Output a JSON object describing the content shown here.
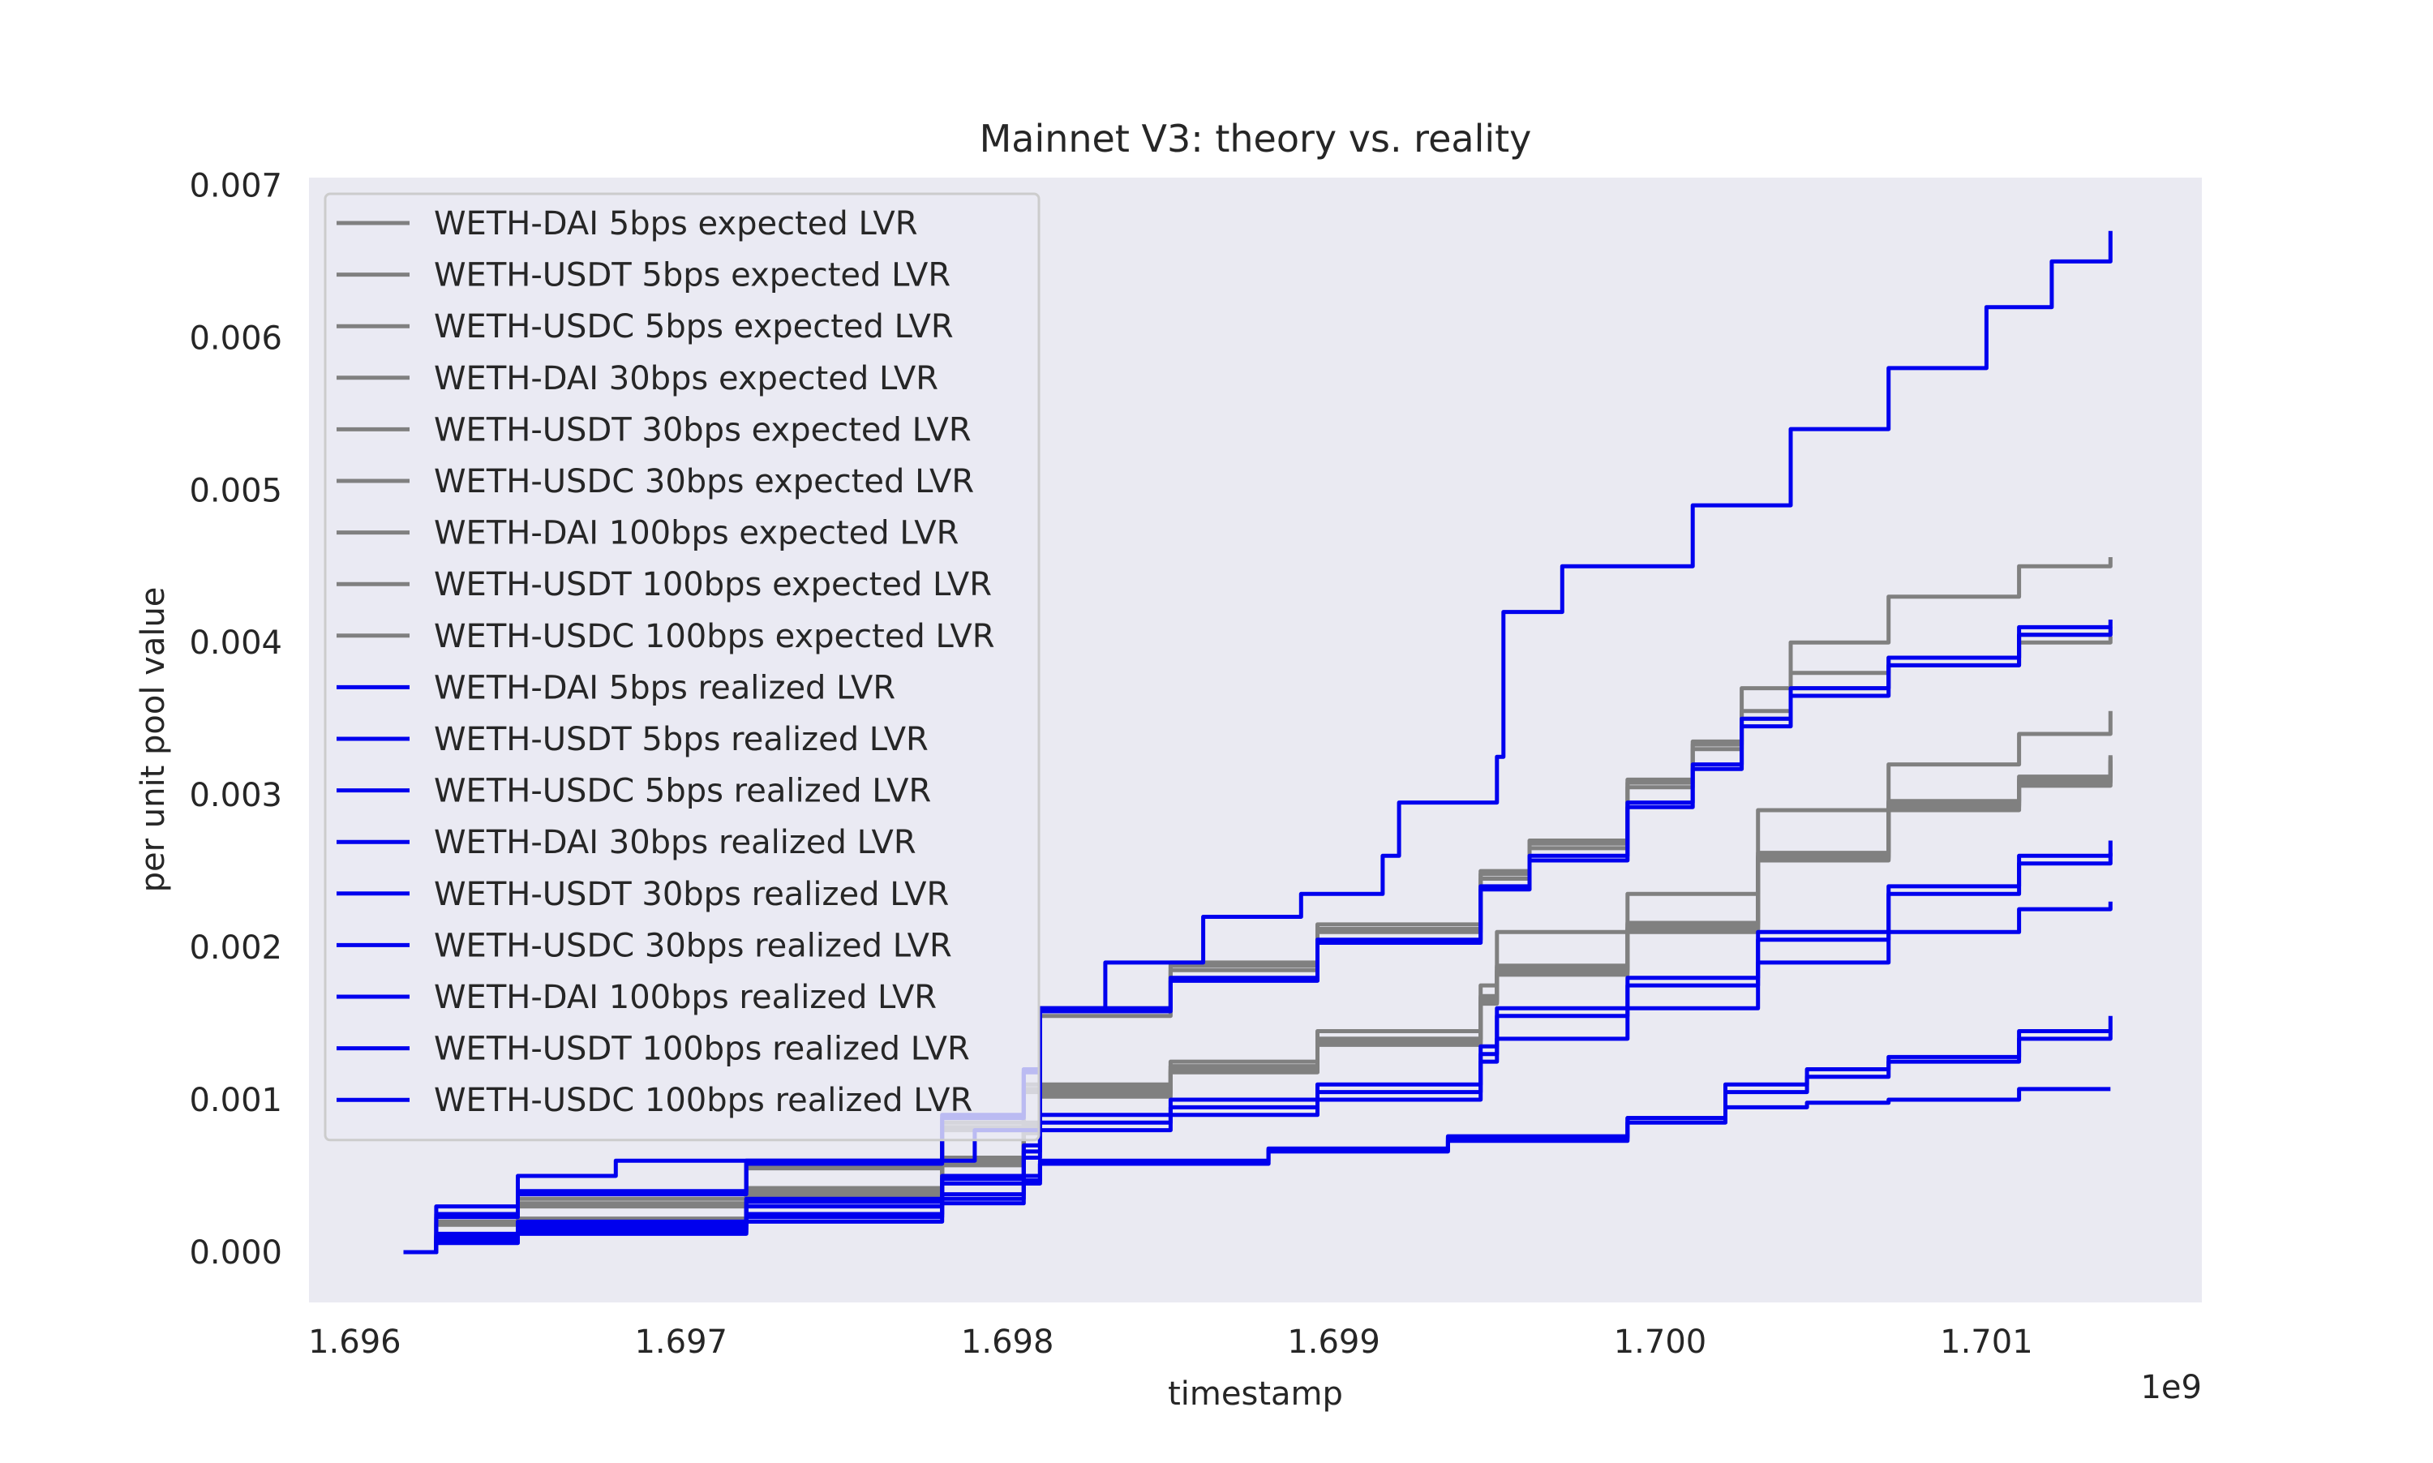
{
  "chart_data": {
    "type": "line",
    "title": "Mainnet V3: theory vs. reality",
    "xlabel": "timestamp",
    "ylabel": "per unit pool value",
    "x_offset_label": "1e9",
    "xlim": [
      1.69586,
      1.70166
    ],
    "ylim": [
      -0.00033,
      0.00705
    ],
    "xticks": [
      1.696,
      1.697,
      1.698,
      1.699,
      1.7,
      1.701
    ],
    "xtick_labels": [
      "1.696",
      "1.697",
      "1.698",
      "1.699",
      "1.700",
      "1.701"
    ],
    "yticks": [
      0.0,
      0.001,
      0.002,
      0.003,
      0.004,
      0.005,
      0.006,
      0.007
    ],
    "ytick_labels": [
      "0.000",
      "0.001",
      "0.002",
      "0.003",
      "0.004",
      "0.005",
      "0.006",
      "0.007"
    ],
    "grid": false,
    "legend_position": "top-left",
    "colors": {
      "expected": "#808080",
      "realized": "#0000ee",
      "plot_background": "#eaeaf2"
    },
    "series": [
      {
        "name": "WETH-DAI 5bps expected LVR",
        "group": "expected",
        "x": [
          1.69615,
          1.69625,
          1.6965,
          1.6972,
          1.6978,
          1.69805,
          1.6981,
          1.6985,
          1.69895,
          1.69945,
          1.6996,
          1.6999,
          1.7001,
          1.70025,
          1.7004,
          1.7007,
          1.7011,
          1.70138
        ],
        "y": [
          0.0,
          0.0002,
          0.00035,
          0.0006,
          0.00085,
          0.0011,
          0.0016,
          0.0019,
          0.00215,
          0.0025,
          0.0027,
          0.0031,
          0.00335,
          0.0037,
          0.004,
          0.0043,
          0.0045,
          0.00456
        ]
      },
      {
        "name": "WETH-USDT 5bps expected LVR",
        "group": "expected",
        "x": [
          1.69615,
          1.69625,
          1.6965,
          1.6972,
          1.6978,
          1.69805,
          1.6981,
          1.6985,
          1.69895,
          1.69945,
          1.6996,
          1.6999,
          1.7001,
          1.70025,
          1.7004,
          1.7007,
          1.7011,
          1.70138
        ],
        "y": [
          0.0,
          0.00018,
          0.0003,
          0.00055,
          0.0008,
          0.00105,
          0.00155,
          0.00185,
          0.0021,
          0.00245,
          0.00265,
          0.00305,
          0.0033,
          0.0035,
          0.0037,
          0.00385,
          0.004,
          0.00404
        ]
      },
      {
        "name": "WETH-USDC 5bps expected LVR",
        "group": "expected",
        "x": [
          1.69615,
          1.69625,
          1.6965,
          1.6972,
          1.6978,
          1.69805,
          1.6981,
          1.6985,
          1.69895,
          1.69945,
          1.6996,
          1.6999,
          1.7001,
          1.70025,
          1.7004,
          1.7007,
          1.7011,
          1.70138
        ],
        "y": [
          0.0,
          0.00019,
          0.00032,
          0.00057,
          0.00082,
          0.00107,
          0.00158,
          0.00188,
          0.00212,
          0.00248,
          0.00268,
          0.00308,
          0.00333,
          0.00355,
          0.0038,
          0.0039,
          0.00405,
          0.00408
        ]
      },
      {
        "name": "WETH-DAI 30bps expected LVR",
        "group": "expected",
        "x": [
          1.69615,
          1.69625,
          1.6965,
          1.6972,
          1.6978,
          1.69805,
          1.6981,
          1.6985,
          1.69895,
          1.69945,
          1.6995,
          1.6999,
          1.7003,
          1.7007,
          1.7011,
          1.70138
        ],
        "y": [
          0.0,
          0.0001,
          0.00022,
          0.00042,
          0.00062,
          0.00085,
          0.0011,
          0.00125,
          0.00145,
          0.00175,
          0.0021,
          0.00235,
          0.0029,
          0.0032,
          0.0034,
          0.00355
        ]
      },
      {
        "name": "WETH-USDT 30bps expected LVR",
        "group": "expected",
        "x": [
          1.69615,
          1.69625,
          1.6965,
          1.6972,
          1.6978,
          1.69805,
          1.6981,
          1.6985,
          1.69895,
          1.69945,
          1.6995,
          1.6999,
          1.7003,
          1.7007,
          1.7011,
          1.70138
        ],
        "y": [
          0.0,
          9e-05,
          0.0002,
          0.0004,
          0.0006,
          0.00082,
          0.00108,
          0.00122,
          0.0014,
          0.00168,
          0.00188,
          0.00215,
          0.0026,
          0.00295,
          0.0031,
          0.00325
        ]
      },
      {
        "name": "WETH-USDC 30bps expected LVR",
        "group": "expected",
        "x": [
          1.69615,
          1.69625,
          1.6965,
          1.6972,
          1.6978,
          1.69805,
          1.6981,
          1.6985,
          1.69895,
          1.69945,
          1.6995,
          1.6999,
          1.7003,
          1.7007,
          1.7011,
          1.70138
        ],
        "y": [
          0.0,
          9e-05,
          0.00019,
          0.00039,
          0.00059,
          0.0008,
          0.00105,
          0.0012,
          0.00138,
          0.00165,
          0.00185,
          0.00212,
          0.00258,
          0.00292,
          0.00308,
          0.00322
        ]
      },
      {
        "name": "WETH-DAI 100bps expected LVR",
        "group": "expected",
        "x": [
          1.69615,
          1.69625,
          1.6965,
          1.6972,
          1.6978,
          1.69805,
          1.6981,
          1.6985,
          1.69895,
          1.69945,
          1.6995,
          1.6999,
          1.7003,
          1.7007,
          1.7011,
          1.70138
        ],
        "y": [
          0.0,
          9e-05,
          0.00018,
          0.00038,
          0.00058,
          0.0008,
          0.00104,
          0.00119,
          0.00137,
          0.00164,
          0.00184,
          0.00213,
          0.00259,
          0.00293,
          0.00309,
          0.00323
        ]
      },
      {
        "name": "WETH-USDT 100bps expected LVR",
        "group": "expected",
        "x": [
          1.69615,
          1.69625,
          1.6965,
          1.6972,
          1.6978,
          1.69805,
          1.6981,
          1.6985,
          1.69895,
          1.69945,
          1.6995,
          1.6999,
          1.7003,
          1.7007,
          1.7011,
          1.70138
        ],
        "y": [
          0.0,
          0.0001,
          0.0002,
          0.0004,
          0.0006,
          0.00083,
          0.00107,
          0.00122,
          0.0014,
          0.00167,
          0.00187,
          0.00216,
          0.00262,
          0.00296,
          0.00312,
          0.00326
        ]
      },
      {
        "name": "WETH-USDC 100bps expected LVR",
        "group": "expected",
        "x": [
          1.69615,
          1.69625,
          1.6965,
          1.6972,
          1.6978,
          1.69805,
          1.6981,
          1.6985,
          1.69895,
          1.69945,
          1.6995,
          1.6999,
          1.7003,
          1.7007,
          1.7011,
          1.70138
        ],
        "y": [
          0.0,
          8e-05,
          0.00017,
          0.00037,
          0.00057,
          0.00078,
          0.00102,
          0.00118,
          0.00136,
          0.00163,
          0.00182,
          0.0021,
          0.00257,
          0.0029,
          0.00306,
          0.0032
        ]
      },
      {
        "name": "WETH-DAI 5bps realized LVR",
        "group": "realized",
        "x": [
          1.69615,
          1.69625,
          1.6965,
          1.6968,
          1.6969,
          1.6975,
          1.6979,
          1.6981,
          1.6983,
          1.6986,
          1.6989,
          1.69915,
          1.6992,
          1.6995,
          1.69952,
          1.6997,
          1.7001,
          1.7004,
          1.7007,
          1.701,
          1.7012,
          1.70138
        ],
        "y": [
          0.0,
          0.0003,
          0.0005,
          0.0006,
          0.0006,
          0.0006,
          0.0008,
          0.0016,
          0.0019,
          0.0022,
          0.00235,
          0.0026,
          0.00295,
          0.00325,
          0.0042,
          0.0045,
          0.0049,
          0.0054,
          0.0058,
          0.0062,
          0.0065,
          0.0067
        ]
      },
      {
        "name": "WETH-USDT 5bps realized LVR",
        "group": "realized",
        "x": [
          1.69615,
          1.69625,
          1.6965,
          1.6972,
          1.6978,
          1.69805,
          1.6981,
          1.6985,
          1.69895,
          1.69945,
          1.6996,
          1.6999,
          1.7001,
          1.70025,
          1.7004,
          1.7007,
          1.7011,
          1.70138
        ],
        "y": [
          0.0,
          0.00025,
          0.0004,
          0.0006,
          0.0009,
          0.0012,
          0.0016,
          0.0018,
          0.00205,
          0.0024,
          0.0026,
          0.00295,
          0.0032,
          0.0035,
          0.0037,
          0.0039,
          0.0041,
          0.00415
        ]
      },
      {
        "name": "WETH-USDC 5bps realized LVR",
        "group": "realized",
        "x": [
          1.69615,
          1.69625,
          1.6965,
          1.6972,
          1.6978,
          1.69805,
          1.6981,
          1.6985,
          1.69895,
          1.69945,
          1.6996,
          1.6999,
          1.7001,
          1.70025,
          1.7004,
          1.7007,
          1.7011,
          1.70138
        ],
        "y": [
          0.0,
          0.00023,
          0.00038,
          0.00058,
          0.00088,
          0.00118,
          0.00158,
          0.00178,
          0.00203,
          0.00238,
          0.00257,
          0.00292,
          0.00317,
          0.00345,
          0.00365,
          0.00385,
          0.00405,
          0.0041
        ]
      },
      {
        "name": "WETH-DAI 30bps realized LVR",
        "group": "realized",
        "x": [
          1.69615,
          1.69625,
          1.6965,
          1.6972,
          1.6978,
          1.69805,
          1.6981,
          1.6985,
          1.69895,
          1.69945,
          1.6995,
          1.6999,
          1.7003,
          1.7007,
          1.7011,
          1.70138
        ],
        "y": [
          0.0,
          0.00012,
          0.0002,
          0.00035,
          0.0005,
          0.0007,
          0.0009,
          0.001,
          0.0011,
          0.00135,
          0.0016,
          0.0018,
          0.0021,
          0.0024,
          0.0026,
          0.0027
        ]
      },
      {
        "name": "WETH-USDT 30bps realized LVR",
        "group": "realized",
        "x": [
          1.69615,
          1.69625,
          1.6965,
          1.6972,
          1.6978,
          1.69805,
          1.6981,
          1.6985,
          1.69895,
          1.69945,
          1.6995,
          1.6999,
          1.7003,
          1.7007,
          1.7011,
          1.70138
        ],
        "y": [
          0.0,
          0.00011,
          0.00018,
          0.00033,
          0.00048,
          0.00066,
          0.00085,
          0.00095,
          0.00105,
          0.0013,
          0.00155,
          0.00175,
          0.00205,
          0.00235,
          0.00255,
          0.00262
        ]
      },
      {
        "name": "WETH-USDC 30bps realized LVR",
        "group": "realized",
        "x": [
          1.69615,
          1.69625,
          1.6965,
          1.6972,
          1.6978,
          1.69805,
          1.6981,
          1.6985,
          1.69895,
          1.69945,
          1.6995,
          1.6999,
          1.7003,
          1.7007,
          1.7011,
          1.70138
        ],
        "y": [
          0.0,
          0.0001,
          0.00017,
          0.0003,
          0.00045,
          0.00062,
          0.0008,
          0.0009,
          0.001,
          0.00125,
          0.0014,
          0.0016,
          0.0019,
          0.0021,
          0.00225,
          0.0023
        ]
      },
      {
        "name": "WETH-DAI 100bps realized LVR",
        "group": "realized",
        "x": [
          1.69615,
          1.69625,
          1.6965,
          1.6972,
          1.6978,
          1.69805,
          1.6981,
          1.6988,
          1.69935,
          1.6999,
          1.7002,
          1.70045,
          1.7007,
          1.7011,
          1.70138
        ],
        "y": [
          0.0,
          8e-05,
          0.00015,
          0.00025,
          0.00038,
          0.0005,
          0.0006,
          0.00068,
          0.00075,
          0.00088,
          0.0011,
          0.0012,
          0.00128,
          0.00145,
          0.00155
        ]
      },
      {
        "name": "WETH-USDT 100bps realized LVR",
        "group": "realized",
        "x": [
          1.69615,
          1.69625,
          1.6965,
          1.6972,
          1.6978,
          1.69805,
          1.6981,
          1.6988,
          1.69935,
          1.6999,
          1.7002,
          1.70045,
          1.7007,
          1.7011,
          1.70138
        ],
        "y": [
          0.0,
          7e-05,
          0.00013,
          0.00023,
          0.00035,
          0.00047,
          0.00058,
          0.00066,
          0.00073,
          0.00085,
          0.00105,
          0.00115,
          0.00125,
          0.0014,
          0.00145
        ]
      },
      {
        "name": "WETH-USDC 100bps realized LVR",
        "group": "realized",
        "x": [
          1.69615,
          1.69625,
          1.6965,
          1.6972,
          1.6978,
          1.69805,
          1.6981,
          1.6988,
          1.69935,
          1.6999,
          1.7002,
          1.70045,
          1.7007,
          1.7011,
          1.70138
        ],
        "y": [
          0.0,
          6e-05,
          0.00012,
          0.0002,
          0.00032,
          0.00045,
          0.00058,
          0.00067,
          0.00076,
          0.00088,
          0.00095,
          0.00098,
          0.001,
          0.00107,
          0.00107
        ]
      }
    ]
  }
}
